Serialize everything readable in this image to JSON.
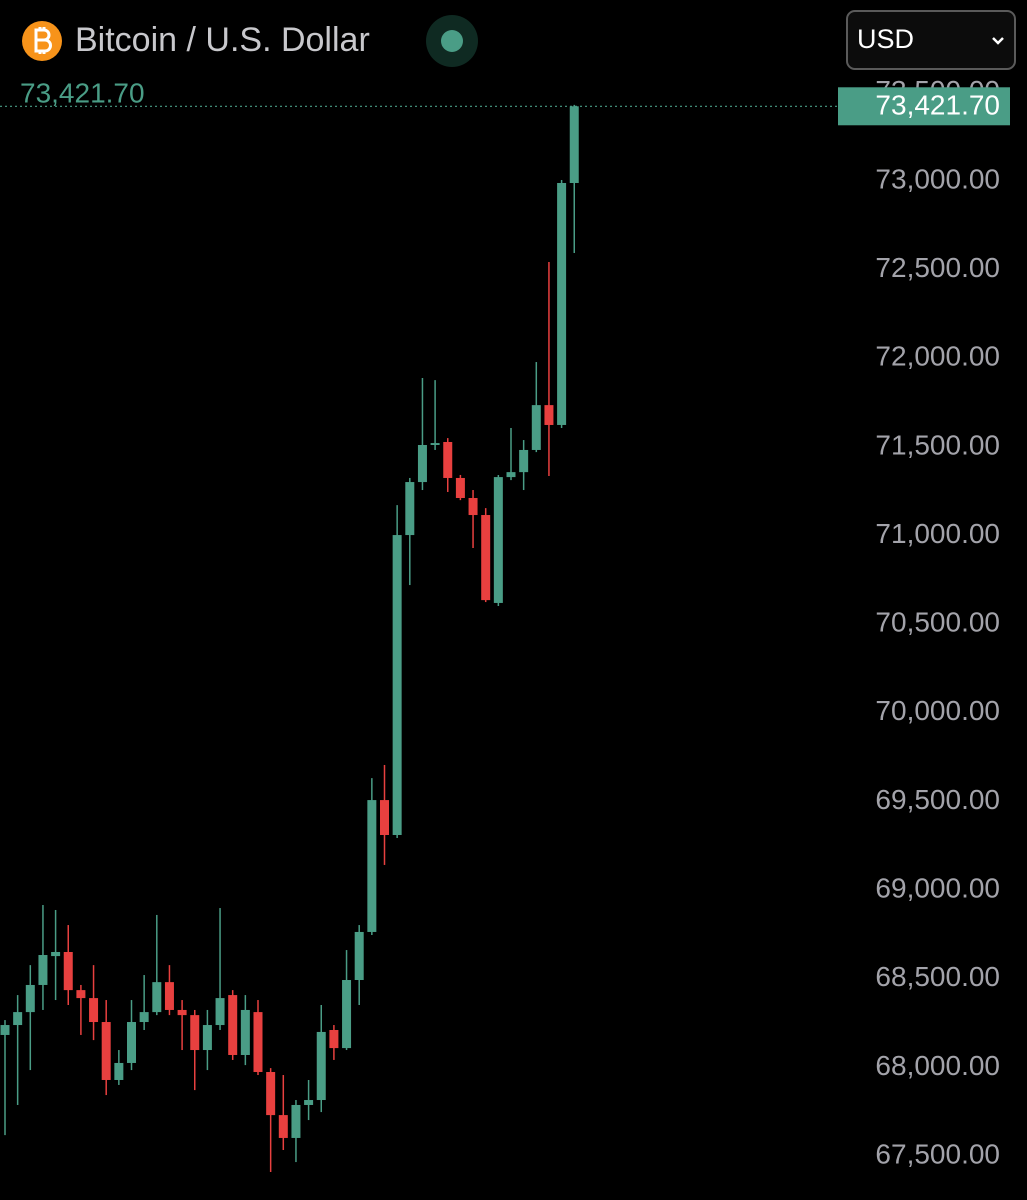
{
  "chart_data": {
    "type": "candlestick",
    "title": "Bitcoin / U.S. Dollar",
    "currency": "USD",
    "last_price_label": "73,421.70",
    "up_color": "#4a9d86",
    "down_color": "#e8403f",
    "ylim": [
      67252,
      73570
    ],
    "yticks": [
      {
        "value": 67500,
        "label": "67,500.00"
      },
      {
        "value": 68000,
        "label": "68,000.00"
      },
      {
        "value": 68500,
        "label": "68,500.00"
      },
      {
        "value": 69000,
        "label": "69,000.00"
      },
      {
        "value": 69500,
        "label": "69,500.00"
      },
      {
        "value": 70000,
        "label": "70,000.00"
      },
      {
        "value": 70500,
        "label": "70,500.00"
      },
      {
        "value": 71000,
        "label": "71,000.00"
      },
      {
        "value": 71500,
        "label": "71,500.00"
      },
      {
        "value": 72000,
        "label": "72,000.00"
      },
      {
        "value": 72500,
        "label": "72,500.00"
      },
      {
        "value": 73000,
        "label": "73,000.00"
      },
      {
        "value": 73500,
        "label": "73,500.00"
      }
    ],
    "open": [
      68183,
      68239,
      68312,
      68465,
      68628,
      68651,
      68436,
      68391,
      68256,
      67929,
      68025,
      68256,
      68312,
      68481,
      68324,
      68295,
      68098,
      68239,
      68408,
      68070,
      68312,
      67974,
      67731,
      67602,
      67788,
      67816,
      68211,
      68109,
      68493,
      68764,
      69508,
      69311,
      71003,
      71302,
      71511,
      71528,
      71325,
      71212,
      71116,
      70620,
      71330,
      71358,
      71483,
      71736,
      71624,
      72989
    ],
    "high": [
      68267,
      68408,
      68577,
      68916,
      68888,
      68803,
      68465,
      68577,
      68380,
      68098,
      68380,
      68521,
      68860,
      68577,
      68380,
      68324,
      68324,
      68899,
      68436,
      68408,
      68380,
      67996,
      67957,
      67816,
      67929,
      68352,
      68239,
      68662,
      68803,
      69632,
      69706,
      71172,
      71325,
      71889,
      71877,
      71550,
      71342,
      71257,
      71155,
      71342,
      71607,
      71539,
      71979,
      72543,
      73006,
      73430
    ],
    "low": [
      67618,
      67788,
      67985,
      68324,
      68380,
      68352,
      68183,
      68154,
      67844,
      67901,
      67985,
      68211,
      68295,
      68295,
      68098,
      67872,
      67985,
      68211,
      68042,
      68013,
      67957,
      67410,
      67534,
      67466,
      67703,
      67748,
      68042,
      68098,
      68352,
      68747,
      69142,
      69294,
      70721,
      71257,
      71483,
      71246,
      71200,
      70930,
      70625,
      70603,
      71313,
      71257,
      71471,
      71336,
      71607,
      72594
    ],
    "close": [
      68239,
      68312,
      68465,
      68634,
      68651,
      68436,
      68391,
      68256,
      67929,
      68025,
      68256,
      68312,
      68481,
      68324,
      68295,
      68098,
      68239,
      68391,
      68070,
      68324,
      67974,
      67731,
      67602,
      67788,
      67816,
      68200,
      68109,
      68493,
      68764,
      69508,
      69311,
      71003,
      71302,
      71511,
      71522,
      71325,
      71212,
      71116,
      70636,
      71330,
      71358,
      71483,
      71736,
      71624,
      72989,
      73421.7
    ]
  }
}
